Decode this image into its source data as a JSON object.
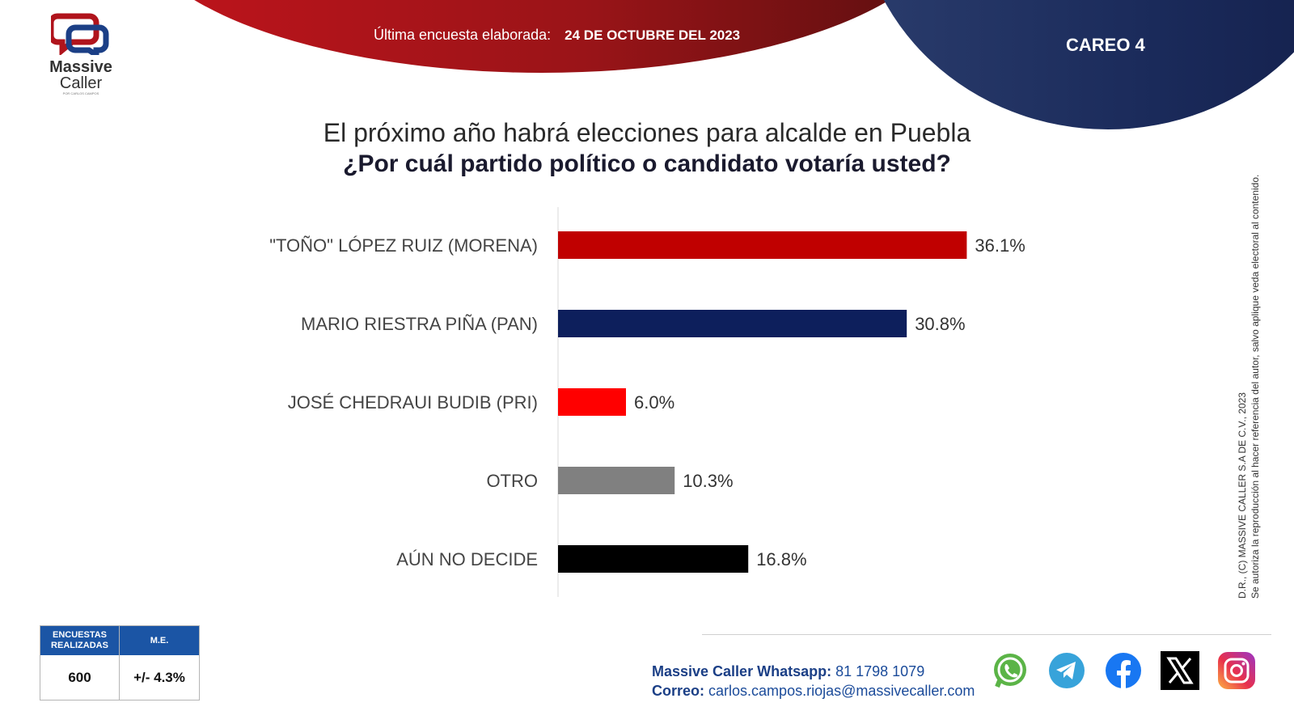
{
  "header": {
    "last_survey_label": "Última encuesta elaborada:",
    "last_survey_date": "24 DE OCTUBRE DEL 2023",
    "careo": "CAREO 4"
  },
  "logo": {
    "line1": "Massive",
    "line2": "Caller",
    "tagline": "POR CARLOS CAMPOS"
  },
  "question": {
    "line1": "El próximo año habrá elecciones para alcalde en Puebla",
    "line2": "¿Por cuál partido político o candidato votaría usted?"
  },
  "chart_data": {
    "type": "bar",
    "orientation": "horizontal",
    "title": "",
    "xlabel": "",
    "ylabel": "",
    "xlim": [
      0,
      40
    ],
    "grid": false,
    "legend": "none",
    "categories": [
      "\"TOÑO\" LÓPEZ RUIZ (MORENA)",
      "MARIO RIESTRA PIÑA (PAN)",
      "JOSÉ CHEDRAUI BUDIB (PRI)",
      "OTRO",
      "AÚN NO DECIDE"
    ],
    "values": [
      36.1,
      30.8,
      6.0,
      10.3,
      16.8
    ],
    "value_labels": [
      "36.1%",
      "30.8%",
      "6.0%",
      "10.3%",
      "16.8%"
    ],
    "colors": [
      "#c00000",
      "#0d1f5c",
      "#ff0000",
      "#808080",
      "#000000"
    ]
  },
  "legal": {
    "line1": "D.R., (C) MASSIVE CALLER S.A DE C.V., 2023",
    "line2": "Se autoriza la reproducción al hacer referencia del autor, salvo aplique veda electoral al contenido."
  },
  "stats": {
    "surveys_header": "ENCUESTAS REALIZADAS",
    "surveys_value": "600",
    "me_header": "M.E.",
    "me_value": "+/- 4.3%"
  },
  "contact": {
    "whatsapp_label": "Massive Caller Whatsapp:",
    "whatsapp_value": "81 1798 1079",
    "email_label": "Correo:",
    "email_value": "carlos.campos.riojas@massivecaller.com"
  },
  "social_icons": [
    "whatsapp-icon",
    "telegram-icon",
    "facebook-icon",
    "x-icon",
    "instagram-icon"
  ],
  "colors": {
    "brand_red": "#c0141c",
    "brand_blue": "#1b2a5a",
    "stats_header": "#1b55a5"
  }
}
